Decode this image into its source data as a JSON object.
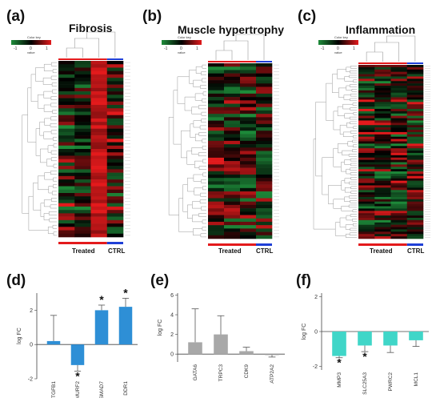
{
  "panels": [
    {
      "letter": "(a)",
      "title": "Fibrosis"
    },
    {
      "letter": "(b)",
      "title": "Muscle hypertrophy"
    },
    {
      "letter": "(c)",
      "title": "Inflammation"
    }
  ],
  "color_key": {
    "title": "Color key",
    "ticks": [
      "-1",
      "0",
      "1"
    ],
    "value_label": "value"
  },
  "groups": {
    "treated": "Treated",
    "ctrl": "CTRL"
  },
  "colors": {
    "low": "#1e8c3a",
    "mid": "#000000",
    "high": "#e31a1c",
    "treated_bar": "#e31a1c",
    "ctrl_bar": "#1f3fd6",
    "bar_d": "#2e8fd6",
    "bar_e": "#a8a8a8",
    "bar_f": "#40d6c8"
  },
  "chart_data": [
    {
      "type": "heatmap",
      "panel": "(a)",
      "title": "Fibrosis",
      "columns_treated": 3,
      "columns_ctrl": 1,
      "rows": 52,
      "legend": "top-left"
    },
    {
      "type": "heatmap",
      "panel": "(b)",
      "title": "Muscle hypertrophy",
      "columns_treated": 3,
      "columns_ctrl": 1,
      "rows": 52,
      "legend": "top-left"
    },
    {
      "type": "heatmap",
      "panel": "(c)",
      "title": "Inflammation",
      "columns_treated": 3,
      "columns_ctrl": 1,
      "rows": 75,
      "legend": "top-left"
    },
    {
      "type": "bar",
      "panel": "(d)",
      "categories": [
        "TGFB1",
        "SMURF2",
        "SMAD7",
        "DDR1"
      ],
      "values": [
        0.2,
        -1.2,
        2.0,
        2.2
      ],
      "errors": [
        1.5,
        0.35,
        0.3,
        0.5
      ],
      "significant": [
        false,
        true,
        true,
        true
      ],
      "ylabel": "log FC",
      "yticks": [
        -2,
        0,
        2
      ],
      "ylim": [
        -2,
        3
      ]
    },
    {
      "type": "bar",
      "panel": "(e)",
      "categories": [
        "GATA6",
        "TRPC3",
        "CDK9",
        "ATP2A2"
      ],
      "values": [
        1.2,
        2.0,
        0.3,
        -0.1
      ],
      "errors": [
        3.4,
        1.9,
        0.4,
        0.2
      ],
      "significant": [
        false,
        false,
        false,
        false
      ],
      "ylabel": "log FC",
      "yticks": [
        0,
        2,
        4,
        6
      ],
      "ylim": [
        -0.8,
        6.2
      ]
    },
    {
      "type": "bar",
      "panel": "(f)",
      "categories": [
        "MMP3",
        "SLC25A3",
        "PWRC2",
        "MCL1"
      ],
      "values": [
        -1.4,
        -0.8,
        -0.8,
        -0.5
      ],
      "errors": [
        0.1,
        0.35,
        0.4,
        0.35
      ],
      "significant": [
        true,
        true,
        false,
        false
      ],
      "ylabel": "log FC",
      "yticks": [
        -2,
        0,
        2
      ],
      "ylim": [
        -2.2,
        2.2
      ]
    }
  ]
}
